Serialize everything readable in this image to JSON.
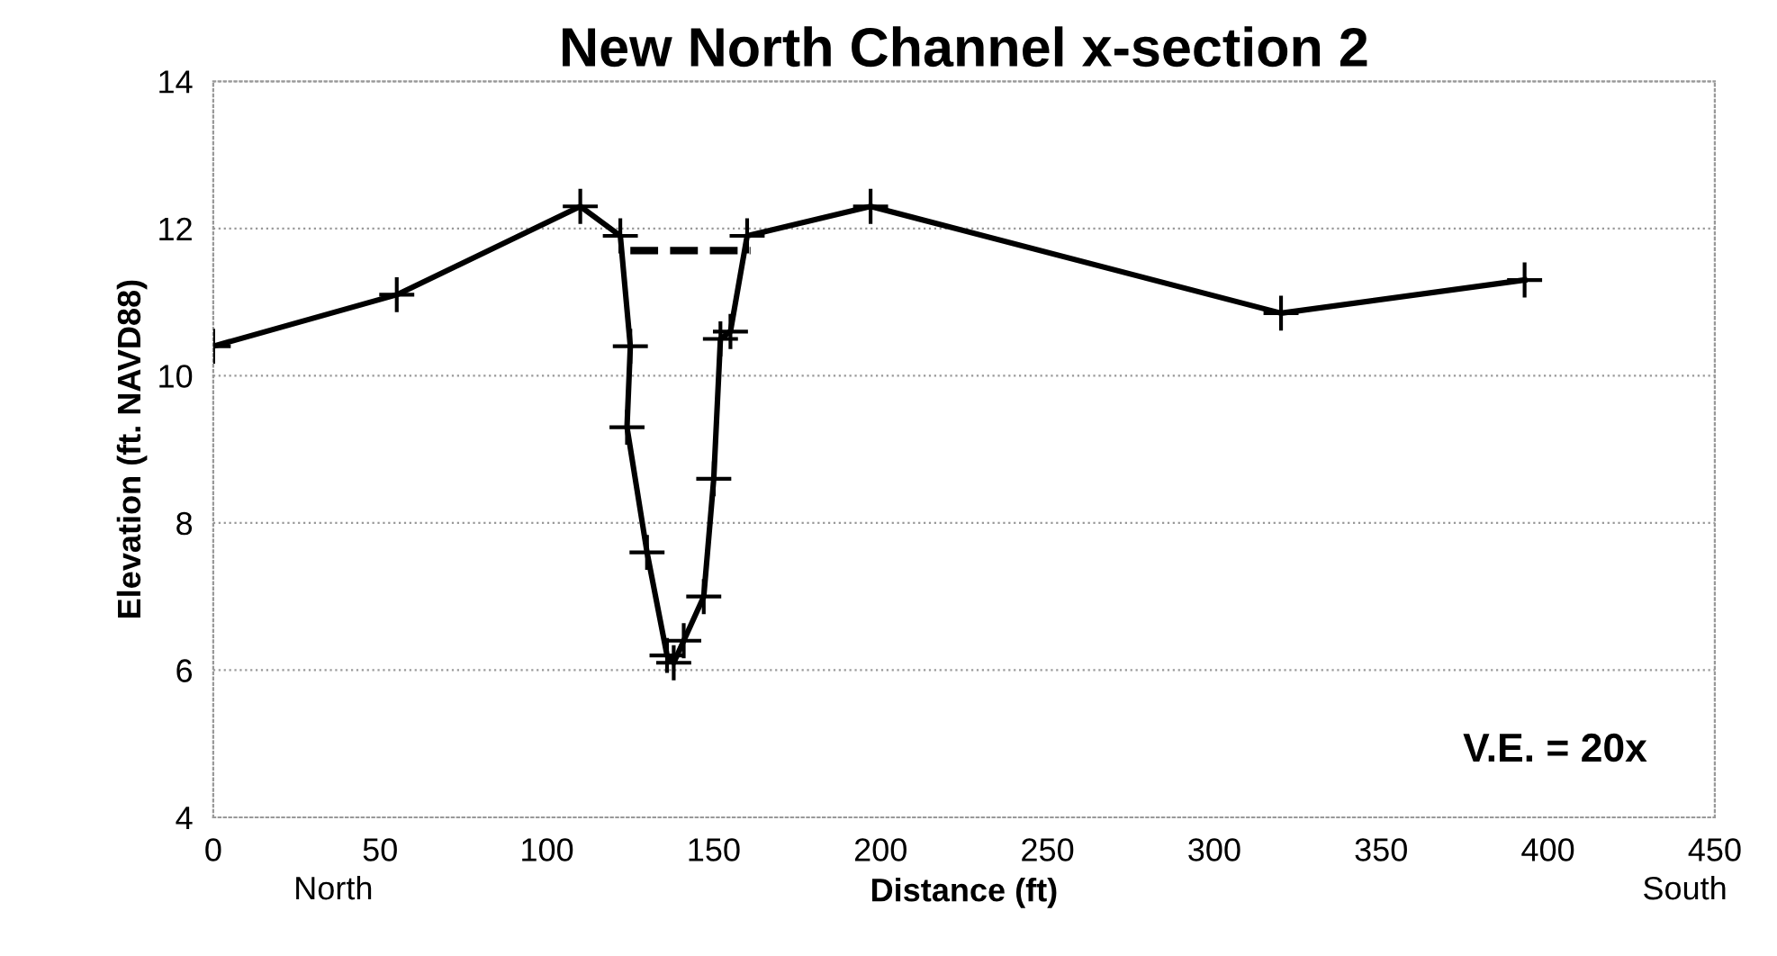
{
  "chart_data": {
    "type": "line",
    "title": "New North Channel x-section 2",
    "xlabel": "Distance (ft)",
    "ylabel": "Elevation (ft. NAVD88)",
    "xlim": [
      0,
      450
    ],
    "xticks": [
      0,
      50,
      100,
      150,
      200,
      250,
      300,
      350,
      400,
      450
    ],
    "ylim": [
      4,
      14
    ],
    "yticks": [
      4,
      6,
      8,
      10,
      12,
      14
    ],
    "grid": "y",
    "series": [
      {
        "color": "#000000",
        "marker": "cross",
        "line_style": "solid",
        "x": [
          0,
          55,
          110,
          122,
          125,
          124,
          130,
          136,
          138,
          141,
          147,
          150,
          152,
          155,
          160,
          197,
          320,
          393
        ],
        "values": [
          10.4,
          11.1,
          12.3,
          11.9,
          10.4,
          9.3,
          7.6,
          6.2,
          6.1,
          6.4,
          7.0,
          8.6,
          10.5,
          10.6,
          11.9,
          12.3,
          10.85,
          11.3
        ]
      },
      {
        "color": "#000000",
        "marker": "none",
        "line_style": "dashed",
        "x": [
          125,
          161
        ],
        "values": [
          11.7,
          11.7
        ]
      }
    ],
    "annotations": [
      "V.E. = 20x",
      "North",
      "South"
    ]
  }
}
